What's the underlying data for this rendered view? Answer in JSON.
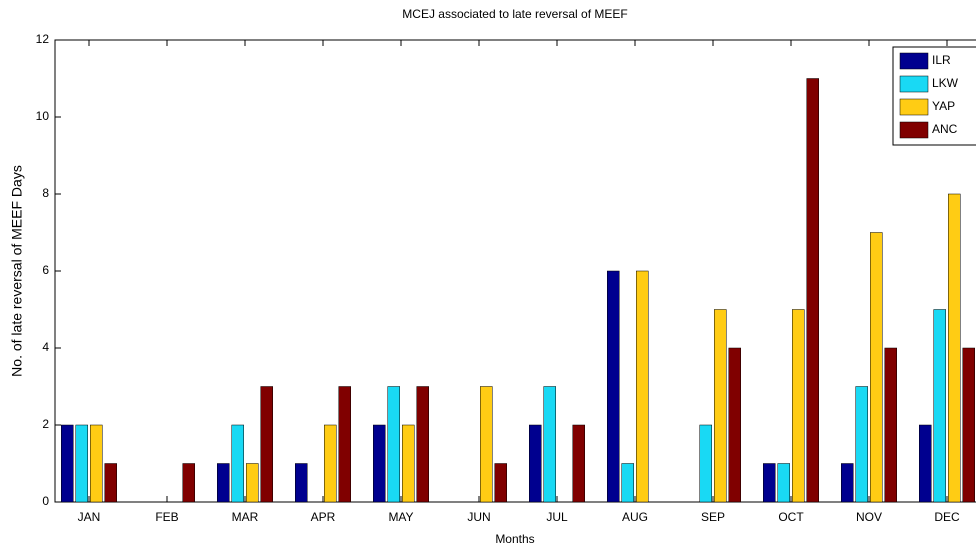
{
  "chart_data": {
    "type": "bar",
    "title": "MCEJ associated to late reversal of MEEF",
    "x_label": "Months",
    "y_label": "No. of late reversal of MEEF Days",
    "categories": [
      "JAN",
      "FEB",
      "MAR",
      "APR",
      "MAY",
      "JUN",
      "JUL",
      "AUG",
      "SEP",
      "OCT",
      "NOV",
      "DEC"
    ],
    "series": [
      {
        "name": "ILR",
        "color": "#00008f",
        "values": [
          2,
          0,
          1,
          1,
          2,
          0,
          2,
          6,
          0,
          1,
          1,
          2
        ]
      },
      {
        "name": "LKW",
        "color": "#19d9f4",
        "values": [
          2,
          0,
          2,
          0,
          3,
          0,
          3,
          1,
          2,
          1,
          3,
          5
        ]
      },
      {
        "name": "YAP",
        "color": "#ffcc14",
        "values": [
          2,
          0,
          1,
          2,
          2,
          3,
          0,
          6,
          5,
          5,
          7,
          8
        ]
      },
      {
        "name": "ANC",
        "color": "#800000",
        "values": [
          1,
          1,
          3,
          3,
          3,
          1,
          2,
          0,
          4,
          11,
          4,
          4
        ]
      }
    ],
    "ylim": [
      0,
      12
    ],
    "yticks": [
      0,
      2,
      4,
      6,
      8,
      10,
      12
    ],
    "legend": "upper right"
  }
}
